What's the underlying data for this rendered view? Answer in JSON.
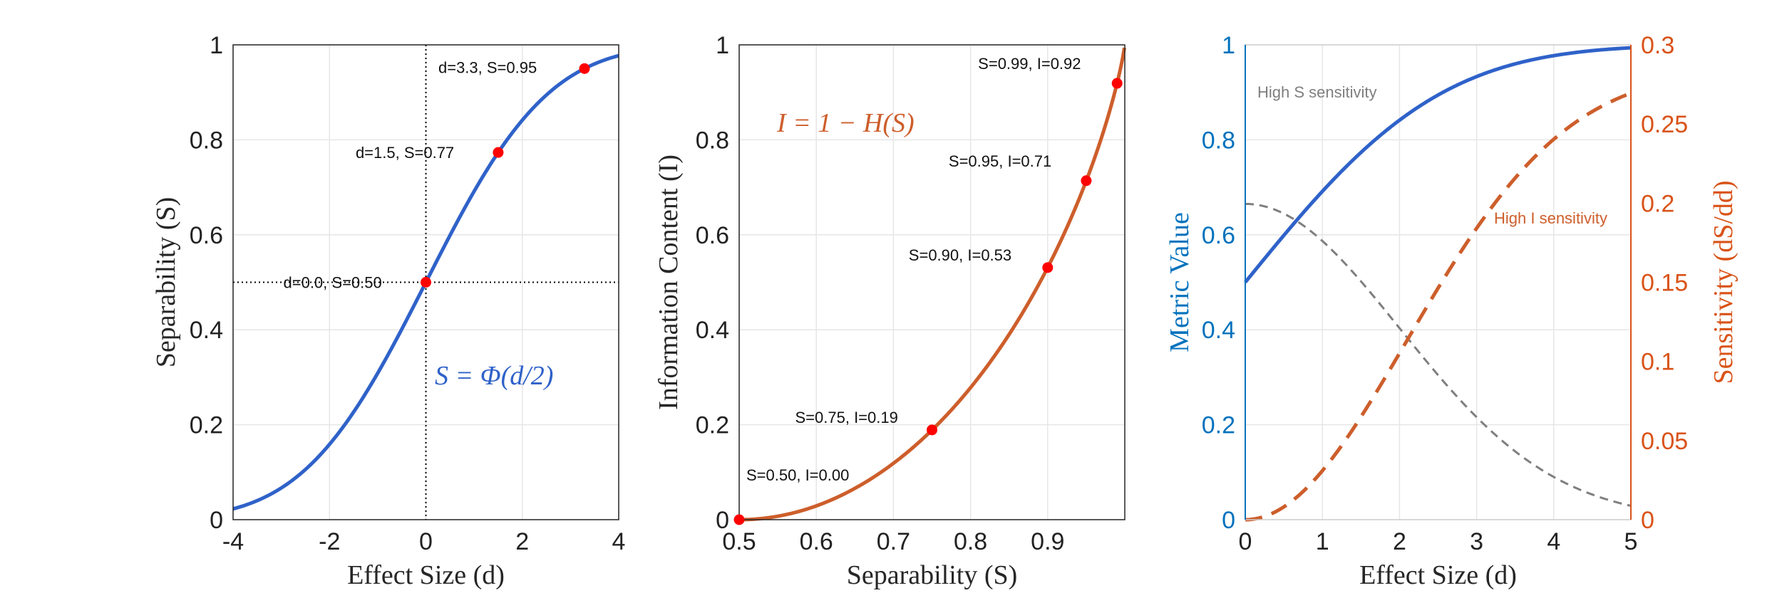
{
  "colors": {
    "blue": "#2f62c9",
    "orange": "#cd5e2b",
    "red_marker": "#ff0000",
    "gray_dashed": "#7f7f7f",
    "axis_blue": "#0072bd",
    "axis_orange": "#d95319"
  },
  "chart_data": [
    {
      "type": "line",
      "xlabel": "Effect Size (d)",
      "ylabel": "Separability (S)",
      "xlim": [
        -4,
        4
      ],
      "ylim": [
        0,
        1
      ],
      "xticks": [
        -4,
        -2,
        0,
        2,
        4
      ],
      "xtick_labels": [
        "-4",
        "-2",
        "0",
        "2",
        "4"
      ],
      "yticks": [
        0,
        0.2,
        0.4,
        0.6,
        0.8,
        1
      ],
      "ytick_labels": [
        "0",
        "0.2",
        "0.4",
        "0.6",
        "0.8",
        "1"
      ],
      "grid": true,
      "formula_label": "S = Φ(d/2)",
      "series": [
        {
          "function": "S = Φ(d/2)",
          "x": [
            -4,
            -3.5,
            -3,
            -2.5,
            -2,
            -1.5,
            -1,
            -0.5,
            0,
            0.5,
            1,
            1.5,
            2,
            2.5,
            3,
            3.5,
            4
          ],
          "y": [
            0.023,
            0.04,
            0.067,
            0.106,
            0.159,
            0.227,
            0.309,
            0.401,
            0.5,
            0.599,
            0.691,
            0.773,
            0.841,
            0.894,
            0.933,
            0.96,
            0.977
          ]
        }
      ],
      "points": [
        {
          "x": 0,
          "y": 0.5,
          "label": "d=0.0, S=0.50"
        },
        {
          "x": 1.5,
          "y": 0.7734,
          "label": "d=1.5, S=0.77"
        },
        {
          "x": 3.29,
          "y": 0.95,
          "label": "d=3.3, S=0.95"
        }
      ],
      "reference_lines": {
        "vertical_x": 0,
        "horizontal_y": 0.5
      }
    },
    {
      "type": "line",
      "xlabel": "Separability (S)",
      "ylabel": "Information Content (I)",
      "xlim": [
        0.5,
        1
      ],
      "ylim": [
        0,
        1
      ],
      "xticks": [
        0.5,
        0.6,
        0.7,
        0.8,
        0.9
      ],
      "xtick_labels": [
        "0.5",
        "0.6",
        "0.7",
        "0.8",
        "0.9"
      ],
      "yticks": [
        0,
        0.2,
        0.4,
        0.6,
        0.8,
        1
      ],
      "ytick_labels": [
        "0",
        "0.2",
        "0.4",
        "0.6",
        "0.8",
        "1"
      ],
      "grid": true,
      "formula_label": "I = 1 − H(S)",
      "series": [
        {
          "function": "I = 1 − H(S)",
          "x": [
            0.5,
            0.55,
            0.6,
            0.65,
            0.7,
            0.75,
            0.8,
            0.85,
            0.9,
            0.95,
            0.99,
            0.999
          ],
          "y": [
            0,
            0.007,
            0.029,
            0.066,
            0.119,
            0.189,
            0.278,
            0.39,
            0.531,
            0.714,
            0.919,
            0.989
          ]
        }
      ],
      "points": [
        {
          "x": 0.5,
          "y": 0.0,
          "label": "S=0.50, I=0.00"
        },
        {
          "x": 0.75,
          "y": 0.189,
          "label": "S=0.75, I=0.19"
        },
        {
          "x": 0.9,
          "y": 0.531,
          "label": "S=0.90, I=0.53"
        },
        {
          "x": 0.95,
          "y": 0.714,
          "label": "S=0.95, I=0.71"
        },
        {
          "x": 0.99,
          "y": 0.919,
          "label": "S=0.99, I=0.92"
        }
      ]
    },
    {
      "type": "line",
      "xlabel": "Effect Size (d)",
      "ylabel_left": "Metric Value",
      "ylabel_right": "Sensitivity (dS/dd)",
      "xlim": [
        0,
        5
      ],
      "ylim_left": [
        0,
        1
      ],
      "ylim_right": [
        0,
        0.3
      ],
      "xticks": [
        0,
        1,
        2,
        3,
        4,
        5
      ],
      "xtick_labels": [
        "0",
        "1",
        "2",
        "3",
        "4",
        "5"
      ],
      "yticks_left": [
        0,
        0.2,
        0.4,
        0.6,
        0.8,
        1
      ],
      "ytick_labels_left": [
        "0",
        "0.2",
        "0.4",
        "0.6",
        "0.8",
        "1"
      ],
      "yticks_right": [
        0,
        0.05,
        0.1,
        0.15,
        0.2,
        0.25,
        0.3
      ],
      "ytick_labels_right": [
        "0",
        "0.05",
        "0.1",
        "0.15",
        "0.2",
        "0.25",
        "0.3"
      ],
      "grid": true,
      "annotations": [
        {
          "text": "High S sensitivity"
        },
        {
          "text": "High I sensitivity"
        }
      ],
      "series": [
        {
          "axis": "left",
          "style": "solid",
          "x": [
            0,
            0.5,
            1,
            1.5,
            2,
            2.5,
            3,
            3.5,
            4,
            4.5,
            5
          ],
          "y": [
            0.5,
            0.599,
            0.691,
            0.773,
            0.841,
            0.894,
            0.933,
            0.96,
            0.977,
            0.988,
            0.994
          ]
        },
        {
          "axis": "left",
          "style": "dashed-thin",
          "x": [
            0,
            0.5,
            1,
            1.5,
            2,
            2.5,
            3,
            3.5,
            4,
            4.5,
            5
          ],
          "y": [
            0.665,
            0.645,
            0.587,
            0.504,
            0.407,
            0.308,
            0.217,
            0.141,
            0.085,
            0.046,
            0.023
          ]
        },
        {
          "axis": "right",
          "style": "dashed-thick",
          "x": [
            0,
            0.5,
            1,
            1.5,
            2,
            2.5,
            3,
            3.5,
            4,
            4.5,
            5
          ],
          "y": [
            0,
            0.011,
            0.039,
            0.081,
            0.129,
            0.175,
            0.214,
            0.244,
            0.264,
            0.277,
            0.284
          ]
        }
      ]
    }
  ]
}
